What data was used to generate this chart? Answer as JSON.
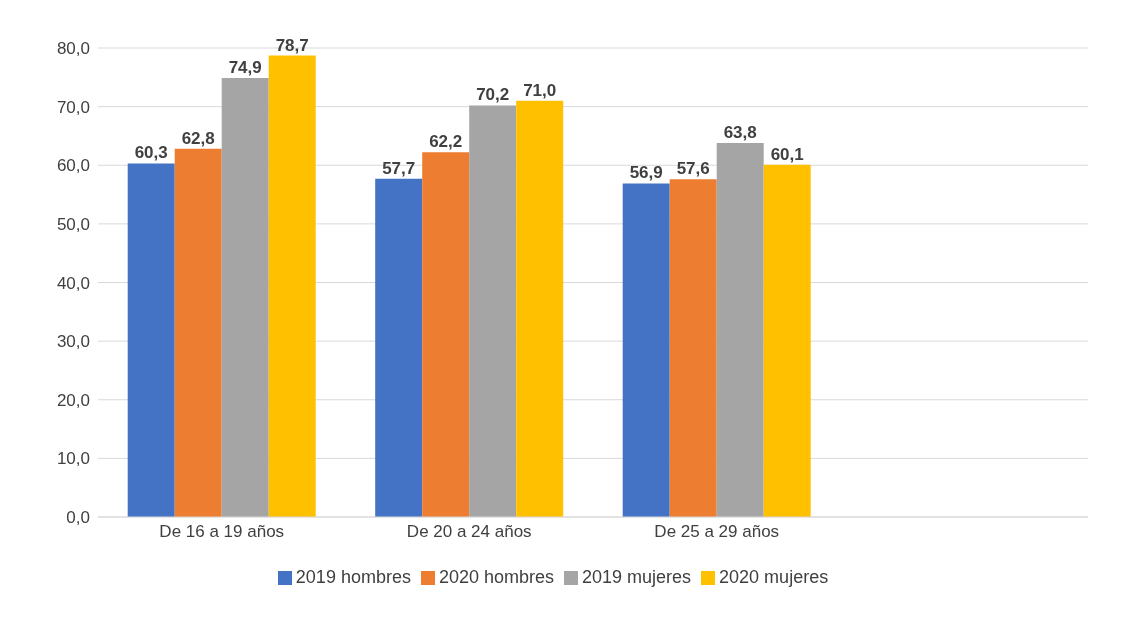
{
  "chart_data": {
    "type": "bar",
    "categories": [
      "De 16 a 19 años",
      "De 20 a 24 años",
      "De 25 a 29 años",
      null
    ],
    "series": [
      {
        "name": "2019 hombres",
        "color": "#4472c4",
        "values": [
          60.3,
          57.7,
          56.9,
          null
        ],
        "value_labels": [
          "60,3",
          "57,7",
          "56,9",
          null
        ]
      },
      {
        "name": "2020 hombres",
        "color": "#ed7d31",
        "values": [
          62.8,
          62.2,
          57.6,
          null
        ],
        "value_labels": [
          "62,8",
          "62,2",
          "57,6",
          null
        ]
      },
      {
        "name": "2019 mujeres",
        "color": "#a5a5a5",
        "values": [
          74.9,
          70.2,
          63.8,
          null
        ],
        "value_labels": [
          "74,9",
          "70,2",
          "63,8",
          null
        ]
      },
      {
        "name": "2020 mujeres",
        "color": "#ffc000",
        "values": [
          78.7,
          71.0,
          60.1,
          null
        ],
        "value_labels": [
          "78,7",
          "71,0",
          "60,1",
          null
        ]
      }
    ],
    "ylim": [
      0,
      80
    ],
    "yticks": [
      {
        "value": 0,
        "label": "0,0"
      },
      {
        "value": 10,
        "label": "10,0"
      },
      {
        "value": 20,
        "label": "20,0"
      },
      {
        "value": 30,
        "label": "30,0"
      },
      {
        "value": 40,
        "label": "40,0"
      },
      {
        "value": 50,
        "label": "50,0"
      },
      {
        "value": 60,
        "label": "60,0"
      },
      {
        "value": 70,
        "label": "70,0"
      },
      {
        "value": 80,
        "label": "80,0"
      }
    ],
    "grid": "y",
    "legend": "bottom"
  }
}
